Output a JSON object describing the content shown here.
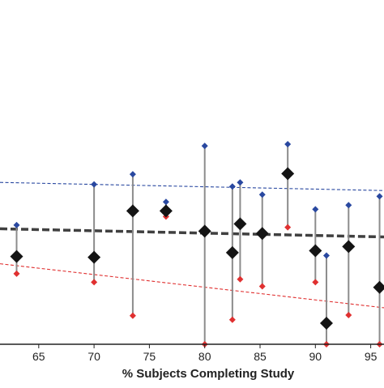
{
  "chart_data": {
    "type": "scatter",
    "title": "",
    "xlabel": "% Subjects Completing Study",
    "ylabel": "",
    "xlim": [
      61.5,
      96.2
    ],
    "ylim": [
      0,
      1
    ],
    "grid": false,
    "x_ticks": [
      65,
      70,
      75,
      80,
      85,
      90,
      95
    ],
    "x_tick_labels": [
      "65",
      "70",
      "75",
      "80",
      "85",
      "90",
      "95"
    ],
    "points": [
      {
        "x": 63.0,
        "upper": 0.555,
        "center": 0.409,
        "lower": 0.329
      },
      {
        "x": 70.0,
        "upper": 0.745,
        "center": 0.405,
        "lower": 0.289
      },
      {
        "x": 73.5,
        "upper": 0.792,
        "center": 0.621,
        "lower": 0.133
      },
      {
        "x": 76.5,
        "upper": 0.663,
        "center": 0.621,
        "lower": 0.595
      },
      {
        "x": 80.0,
        "upper": 0.924,
        "center": 0.527,
        "lower": 0.0
      },
      {
        "x": 82.5,
        "upper": 0.735,
        "center": 0.427,
        "lower": 0.114
      },
      {
        "x": 83.2,
        "upper": 0.754,
        "center": 0.561,
        "lower": 0.303
      },
      {
        "x": 85.2,
        "upper": 0.697,
        "center": 0.516,
        "lower": 0.27
      },
      {
        "x": 87.5,
        "upper": 0.932,
        "center": 0.795,
        "lower": 0.545
      },
      {
        "x": 90.0,
        "upper": 0.629,
        "center": 0.436,
        "lower": 0.289
      },
      {
        "x": 91.0,
        "upper": 0.413,
        "center": 0.098,
        "lower": 0.0
      },
      {
        "x": 93.0,
        "upper": 0.648,
        "center": 0.455,
        "lower": 0.136
      },
      {
        "x": 95.8,
        "upper": 0.689,
        "center": 0.265,
        "lower": 0.0
      }
    ],
    "trend_lines": [
      {
        "name": "upper-trend",
        "color": "#2948a0",
        "style": "dashed-thin",
        "points": [
          [
            61.5,
            0.754
          ],
          [
            96.2,
            0.716
          ]
        ]
      },
      {
        "name": "center-trend",
        "color": "#404040",
        "style": "dashed-thick",
        "points": [
          [
            61.5,
            0.538
          ],
          [
            96.2,
            0.5
          ]
        ]
      },
      {
        "name": "lower-trend",
        "color": "#e03030",
        "style": "dashed-thin",
        "points": [
          [
            61.5,
            0.375
          ],
          [
            96.2,
            0.17
          ]
        ]
      }
    ],
    "colors": {
      "upper_marker": "#2948a0",
      "center_marker": "#141414",
      "lower_marker": "#e03030",
      "whisker": "#8c8c8c",
      "axis": "#222222"
    }
  }
}
